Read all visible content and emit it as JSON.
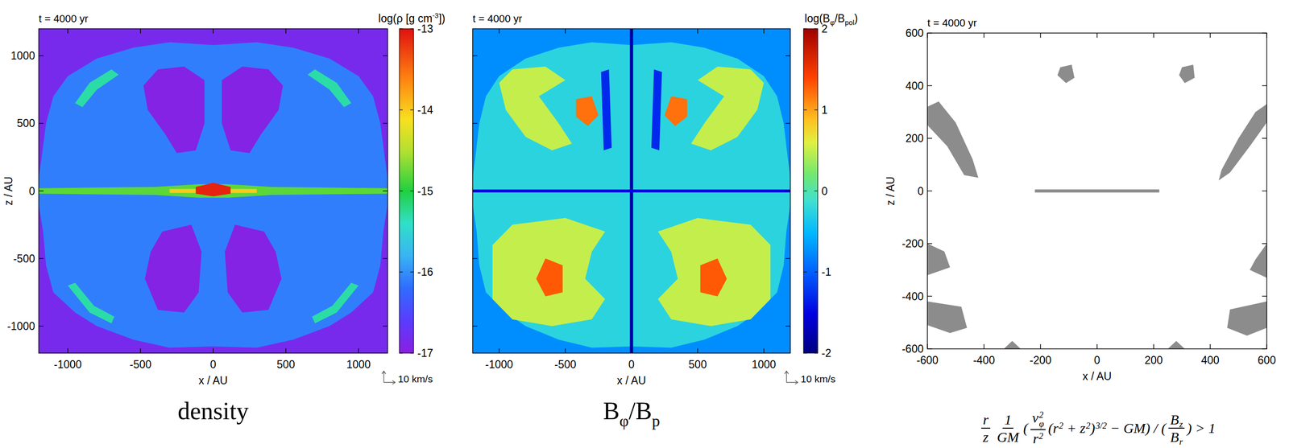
{
  "chart_data": [
    {
      "type": "contour",
      "title": "t = 4000 yr",
      "xlabel": "x / AU",
      "ylabel": "z / AU",
      "xlim": [
        -1200,
        1200
      ],
      "ylim": [
        -1200,
        1200
      ],
      "xticks": [
        -1000,
        -500,
        0,
        500,
        1000
      ],
      "yticks": [
        -1000,
        -500,
        0,
        500,
        1000
      ],
      "colorbar_label": [
        {
          "t": "log(ρ [g cm",
          "sup": "-3"
        },
        {
          "t": "])"
        }
      ],
      "colorbar_lim": [
        -17,
        -13
      ],
      "colorbar_ticks": [
        -17,
        -16,
        -15,
        -14,
        -13
      ],
      "annotation": "10 km/s",
      "caption": [
        {
          "t": "density"
        }
      ],
      "regions": [
        {
          "value": -16.85,
          "x": [
            -1200,
            1200,
            1200,
            -1200
          ],
          "y": [
            -1200,
            -1200,
            1200,
            1200
          ]
        },
        {
          "value": -16.1,
          "x": [
            0,
            300,
            550,
            800,
            1000,
            1100,
            1150,
            1180,
            1200,
            1200,
            1170,
            1150,
            1100,
            950,
            800,
            550,
            300,
            0,
            -300,
            -550,
            -800,
            -950,
            -1100,
            -1150,
            -1170,
            -1200,
            -1200,
            -1180,
            -1150,
            -1100,
            -1000,
            -800,
            -550,
            -300
          ],
          "y": [
            1080,
            1100,
            1060,
            980,
            850,
            700,
            500,
            250,
            100,
            -100,
            -300,
            -550,
            -750,
            -900,
            -1000,
            -1100,
            -1160,
            -1150,
            -1160,
            -1100,
            -1000,
            -900,
            -750,
            -550,
            -300,
            -100,
            100,
            250,
            500,
            700,
            850,
            980,
            1060,
            1100
          ]
        },
        {
          "value": -15.3,
          "x": [
            -950,
            -850,
            -700,
            -650,
            -800,
            -900
          ],
          "y": [
            650,
            800,
            900,
            860,
            750,
            620
          ]
        },
        {
          "value": -15.3,
          "x": [
            950,
            850,
            700,
            650,
            800,
            900
          ],
          "y": [
            650,
            800,
            900,
            860,
            750,
            620
          ]
        },
        {
          "value": -15.3,
          "x": [
            -1000,
            -850,
            -700,
            -680,
            -820,
            -950
          ],
          "y": [
            -700,
            -900,
            -980,
            -930,
            -850,
            -680
          ]
        },
        {
          "value": -15.3,
          "x": [
            1000,
            850,
            700,
            680,
            820,
            950
          ],
          "y": [
            -700,
            -900,
            -980,
            -930,
            -850,
            -680
          ]
        },
        {
          "value": -16.95,
          "x": [
            -380,
            -200,
            -60,
            -60,
            -120,
            -250,
            -330,
            -450,
            -480
          ],
          "y": [
            900,
            920,
            820,
            500,
            300,
            280,
            420,
            600,
            780
          ]
        },
        {
          "value": -16.95,
          "x": [
            380,
            200,
            60,
            60,
            120,
            250,
            330,
            450,
            480
          ],
          "y": [
            900,
            920,
            820,
            500,
            300,
            280,
            420,
            600,
            780
          ]
        },
        {
          "value": -16.95,
          "x": [
            -350,
            -150,
            -80,
            -100,
            -200,
            -380,
            -470,
            -430
          ],
          "y": [
            -300,
            -250,
            -450,
            -750,
            -900,
            -880,
            -650,
            -450
          ]
        },
        {
          "value": -16.95,
          "x": [
            350,
            150,
            80,
            100,
            200,
            380,
            470,
            430
          ],
          "y": [
            -300,
            -250,
            -450,
            -750,
            -900,
            -880,
            -650,
            -450
          ]
        },
        {
          "value": -14.8,
          "x": [
            -1200,
            -400,
            -100,
            100,
            400,
            1200,
            1200,
            400,
            100,
            -100,
            -400,
            -1200
          ],
          "y": [
            20,
            30,
            50,
            50,
            30,
            20,
            -20,
            -30,
            -50,
            -50,
            -30,
            -20
          ]
        },
        {
          "value": -14.0,
          "x": [
            -300,
            300,
            300,
            -300
          ],
          "y": [
            15,
            15,
            -15,
            -15
          ]
        },
        {
          "value": -13.1,
          "x": [
            -120,
            0,
            120,
            120,
            0,
            -120
          ],
          "y": [
            30,
            60,
            30,
            -20,
            -40,
            -20
          ]
        }
      ]
    },
    {
      "type": "contour",
      "title": "t = 4000 yr",
      "xlabel": "x / AU",
      "tick_labels": "x",
      "xlim": [
        -1200,
        1200
      ],
      "ylim": [
        -1200,
        1200
      ],
      "xticks": [
        -1000,
        -500,
        0,
        500,
        1000
      ],
      "yticks": [
        -1000,
        -500,
        0,
        500,
        1000
      ],
      "colorbar_label": [
        {
          "t": "log(B",
          "sub": "φ"
        },
        {
          "t": "/B",
          "sub": "pol"
        },
        {
          "t": ")"
        }
      ],
      "colorbar_lim": [
        -2,
        2
      ],
      "colorbar_ticks": [
        -2,
        -1,
        0,
        1,
        2
      ],
      "annotation": "10 km/s",
      "caption": [
        {
          "t": "B",
          "sub": "φ"
        },
        {
          "t": "/B",
          "sub": "p"
        }
      ],
      "regions": [
        {
          "value": -0.75,
          "x": [
            -1200,
            1200,
            1200,
            -1200
          ],
          "y": [
            -1200,
            -1200,
            1200,
            1200
          ]
        },
        {
          "value": -0.25,
          "x": [
            0,
            300,
            550,
            800,
            1000,
            1100,
            1150,
            1180,
            1200,
            1200,
            1170,
            1150,
            1100,
            950,
            800,
            550,
            300,
            0,
            -300,
            -550,
            -800,
            -950,
            -1100,
            -1150,
            -1170,
            -1200,
            -1200,
            -1180,
            -1150,
            -1100,
            -1000,
            -800,
            -550,
            -300
          ],
          "y": [
            1080,
            1100,
            1060,
            980,
            850,
            700,
            500,
            250,
            100,
            -100,
            -300,
            -550,
            -750,
            -900,
            -1000,
            -1100,
            -1160,
            -1150,
            -1160,
            -1100,
            -1000,
            -900,
            -750,
            -550,
            -300,
            -100,
            100,
            250,
            500,
            700,
            850,
            980,
            1060,
            1100
          ]
        },
        {
          "value": 0.5,
          "x": [
            -650,
            -900,
            -1000,
            -950,
            -800,
            -600,
            -450,
            -550,
            -700,
            -500
          ],
          "y": [
            920,
            900,
            800,
            600,
            400,
            300,
            350,
            500,
            700,
            820
          ]
        },
        {
          "value": 0.5,
          "x": [
            650,
            900,
            1000,
            950,
            800,
            600,
            450,
            550,
            700,
            500
          ],
          "y": [
            920,
            900,
            800,
            600,
            400,
            300,
            350,
            500,
            700,
            820
          ]
        },
        {
          "value": 1.2,
          "x": [
            -420,
            -300,
            -250,
            -330,
            -420
          ],
          "y": [
            680,
            700,
            560,
            480,
            550
          ]
        },
        {
          "value": 1.2,
          "x": [
            420,
            300,
            250,
            330,
            420
          ],
          "y": [
            680,
            700,
            560,
            480,
            550
          ]
        },
        {
          "value": 0.5,
          "x": [
            -200,
            -500,
            -900,
            -1050,
            -1050,
            -900,
            -600,
            -300,
            -200,
            -350,
            -300
          ],
          "y": [
            -300,
            -200,
            -250,
            -400,
            -800,
            -950,
            -1000,
            -950,
            -800,
            -650,
            -450
          ]
        },
        {
          "value": 0.5,
          "x": [
            200,
            500,
            900,
            1050,
            1050,
            900,
            600,
            300,
            200,
            350,
            300
          ],
          "y": [
            -300,
            -200,
            -250,
            -400,
            -800,
            -950,
            -1000,
            -950,
            -800,
            -650,
            -450
          ]
        },
        {
          "value": 1.3,
          "x": [
            -650,
            -520,
            -520,
            -650,
            -720
          ],
          "y": [
            -500,
            -550,
            -750,
            -780,
            -650
          ]
        },
        {
          "value": 1.3,
          "x": [
            650,
            520,
            520,
            650,
            720
          ],
          "y": [
            -500,
            -550,
            -750,
            -780,
            -650
          ]
        },
        {
          "value": -1.3,
          "x": [
            -230,
            -170,
            -150,
            -210
          ],
          "y": [
            880,
            900,
            320,
            300
          ]
        },
        {
          "value": -1.3,
          "x": [
            230,
            170,
            150,
            210
          ],
          "y": [
            880,
            900,
            320,
            300
          ]
        },
        {
          "value": -1.8,
          "x": [
            -12,
            12,
            12,
            -12
          ],
          "y": [
            -1200,
            -1200,
            1200,
            1200
          ]
        },
        {
          "value": -1.5,
          "x": [
            -1200,
            1200,
            1200,
            -1200
          ],
          "y": [
            -10,
            -10,
            10,
            10
          ]
        }
      ]
    },
    {
      "type": "mask",
      "title": "t = 4000 yr",
      "xlabel": "x / AU",
      "ylabel": "z / AU",
      "xlim": [
        -600,
        600
      ],
      "ylim": [
        -600,
        600
      ],
      "xticks": [
        -600,
        -400,
        -200,
        0,
        200,
        400,
        600
      ],
      "yticks": [
        -600,
        -400,
        -200,
        0,
        200,
        400,
        600
      ],
      "caption": [
        {
          "num": [
            {
              "t": "r"
            }
          ],
          "den": [
            {
              "t": "z"
            }
          ]
        },
        {
          "num": [
            {
              "t": "1"
            }
          ],
          "den": [
            {
              "t": "GM"
            }
          ]
        },
        {
          "text": [
            {
              "t": "("
            }
          ]
        },
        {
          "num": [
            {
              "t": "v",
              "sup": "2",
              "sub": "φ"
            }
          ],
          "den": [
            {
              "t": "r",
              "sup": "2"
            }
          ]
        },
        {
          "text": [
            {
              "t": "(r",
              "sup": "2"
            },
            {
              "t": " + z",
              "sup": "2"
            },
            {
              "t": ")",
              "sup": "3/2"
            },
            {
              "t": " − GM) / ("
            }
          ]
        },
        {
          "num": [
            {
              "t": "B",
              "sub": "z"
            }
          ],
          "den": [
            {
              "t": "B",
              "sub": "r"
            }
          ]
        },
        {
          "text": [
            {
              "t": ") > 1"
            }
          ]
        }
      ],
      "regions": [
        {
          "value": 0,
          "x": [
            -600,
            600,
            600,
            -600
          ],
          "y": [
            -600,
            -600,
            600,
            600
          ]
        },
        {
          "value": 1,
          "x": [
            -600,
            -560,
            -500,
            -440,
            -420,
            -470,
            -530,
            -600
          ],
          "y": [
            320,
            340,
            260,
            120,
            50,
            60,
            170,
            250
          ]
        },
        {
          "value": 1,
          "x": [
            600,
            560,
            500,
            440,
            430,
            470,
            540,
            600
          ],
          "y": [
            330,
            300,
            200,
            80,
            40,
            70,
            170,
            260
          ]
        },
        {
          "value": 1,
          "x": [
            -130,
            -90,
            -80,
            -110,
            -140
          ],
          "y": [
            470,
            480,
            430,
            410,
            440
          ]
        },
        {
          "value": 1,
          "x": [
            300,
            340,
            345,
            310,
            290
          ],
          "y": [
            470,
            480,
            430,
            410,
            440
          ]
        },
        {
          "value": 1,
          "x": [
            -600,
            -540,
            -520,
            -600
          ],
          "y": [
            -200,
            -230,
            -290,
            -320
          ]
        },
        {
          "value": 1,
          "x": [
            -600,
            -480,
            -460,
            -520,
            -600
          ],
          "y": [
            -420,
            -440,
            -520,
            -540,
            -510
          ]
        },
        {
          "value": 1,
          "x": [
            600,
            560,
            540,
            600
          ],
          "y": [
            -200,
            -260,
            -300,
            -330
          ]
        },
        {
          "value": 1,
          "x": [
            600,
            470,
            460,
            530,
            600
          ],
          "y": [
            -420,
            -450,
            -520,
            -550,
            -520
          ]
        },
        {
          "value": 1,
          "x": [
            -330,
            -300,
            -270
          ],
          "y": [
            -600,
            -570,
            -600
          ]
        },
        {
          "value": 1,
          "x": [
            250,
            280,
            310
          ],
          "y": [
            -600,
            -570,
            -600
          ]
        },
        {
          "value": 1,
          "x": [
            -220,
            220,
            220,
            -220
          ],
          "y": [
            6,
            6,
            -6,
            -6
          ]
        }
      ]
    }
  ]
}
